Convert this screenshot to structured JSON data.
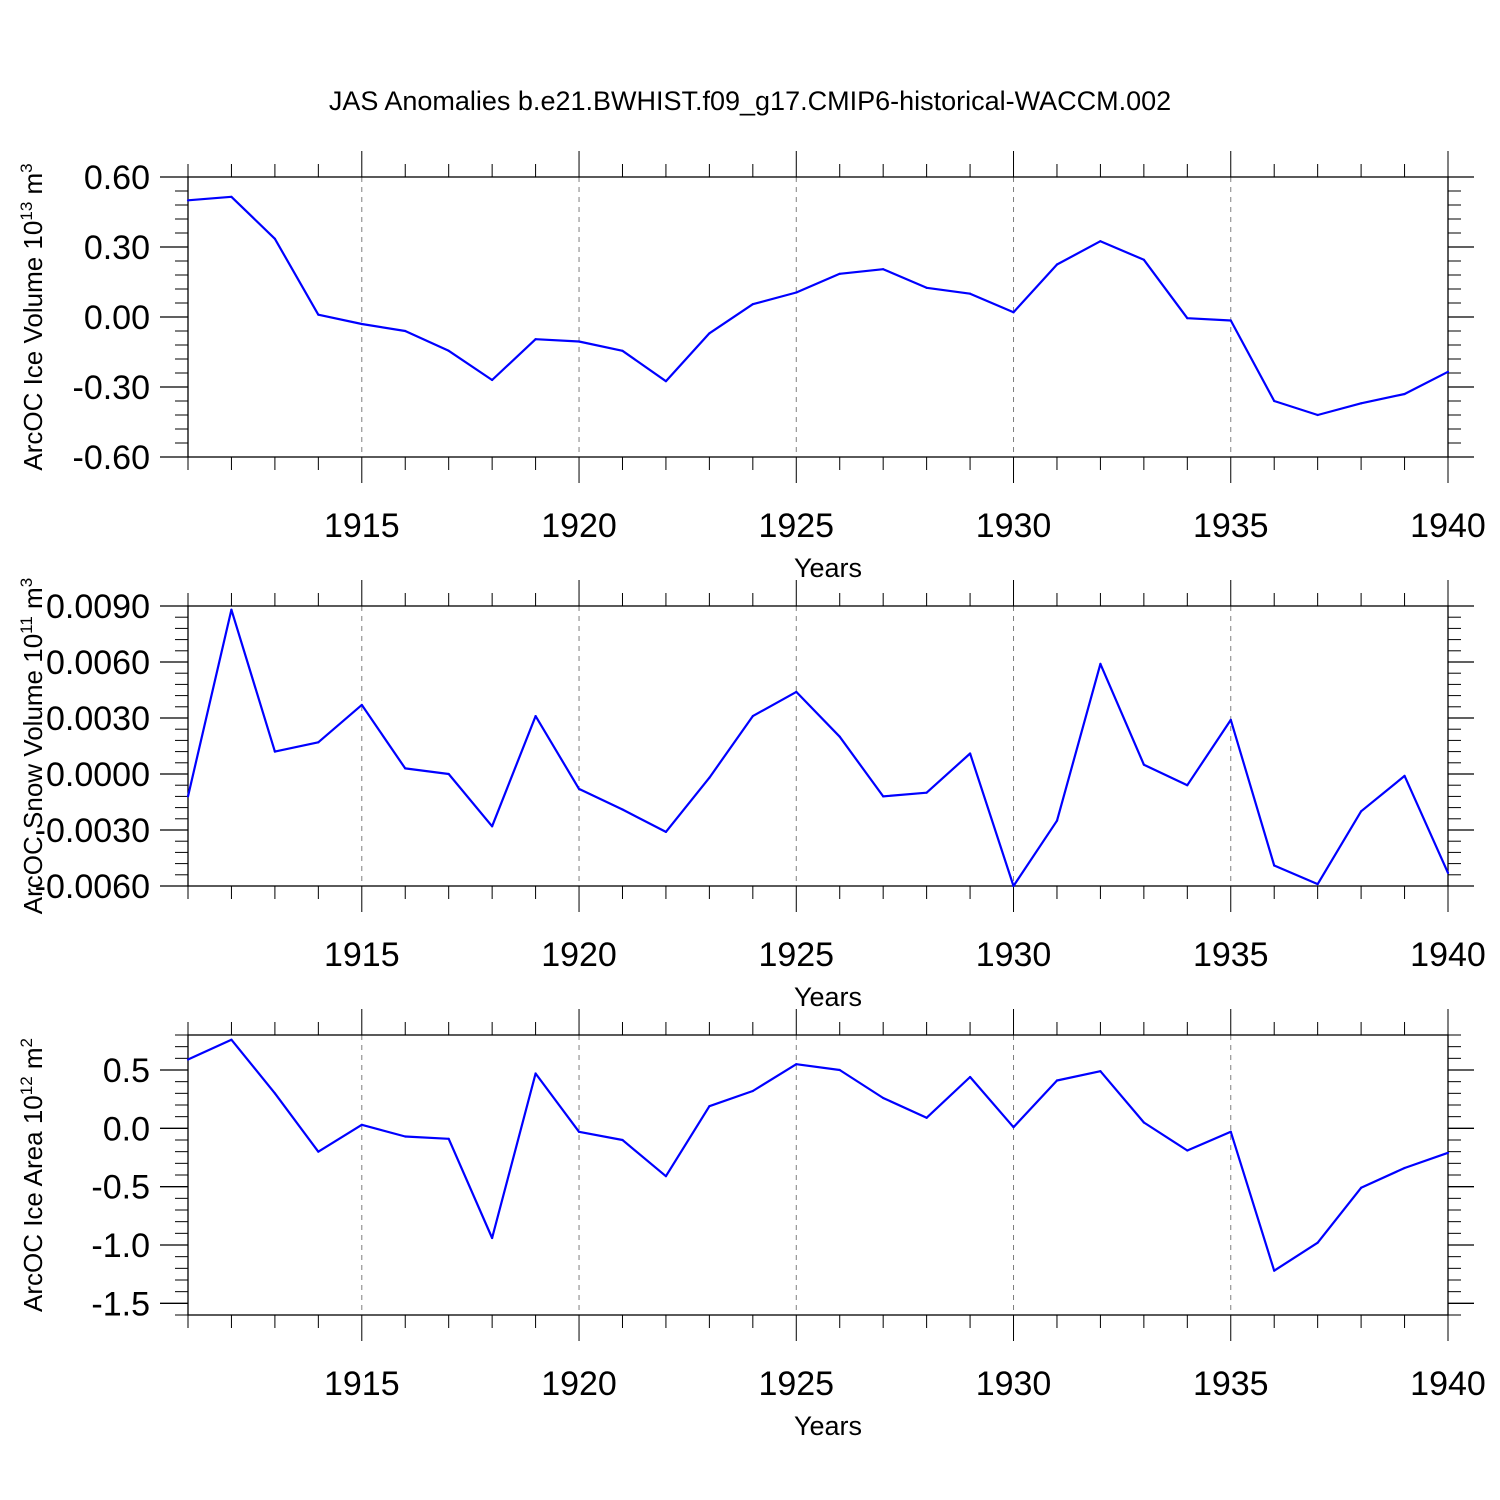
{
  "title": "JAS Anomalies b.e21.BWHIST.f09_g17.CMIP6-historical-WACCM.002",
  "colors": {
    "line": "#0000ff",
    "axes": "#000000",
    "grid": "#7f7f7f",
    "background": "#ffffff"
  },
  "chart_data": [
    {
      "type": "line",
      "ylabel": {
        "text": "ArcOC Ice Volume 10",
        "sup": "13",
        "unit": " m",
        "unit_sup": "3"
      },
      "xlabel": "Years",
      "xlim": [
        1911,
        1940
      ],
      "ylim": [
        -0.6,
        0.6
      ],
      "yticks": [
        -0.6,
        -0.3,
        0.0,
        0.3,
        0.6
      ],
      "ytick_labels": [
        "-0.60",
        "-0.30",
        "0.00",
        "0.30",
        "0.60"
      ],
      "xticks": [
        1915,
        1920,
        1925,
        1930,
        1935,
        1940
      ],
      "xtick_labels": [
        "1915",
        "1920",
        "1925",
        "1930",
        "1935",
        "1940"
      ],
      "grid": "vertical dashed at major x ticks",
      "x": [
        1911,
        1912,
        1913,
        1914,
        1915,
        1916,
        1917,
        1918,
        1919,
        1920,
        1921,
        1922,
        1923,
        1924,
        1925,
        1926,
        1927,
        1928,
        1929,
        1930,
        1931,
        1932,
        1933,
        1934,
        1935,
        1936,
        1937,
        1938,
        1939,
        1940
      ],
      "values": [
        0.5,
        0.515,
        0.335,
        0.01,
        -0.03,
        -0.06,
        -0.145,
        -0.27,
        -0.095,
        -0.105,
        -0.145,
        -0.275,
        -0.07,
        0.055,
        0.105,
        0.185,
        0.205,
        0.125,
        0.1,
        0.02,
        0.225,
        0.325,
        0.245,
        -0.005,
        -0.015,
        -0.36,
        -0.42,
        -0.37,
        -0.33,
        -0.235
      ]
    },
    {
      "type": "line",
      "ylabel": {
        "text": "ArcOC Snow Volume 10",
        "sup": "11",
        "unit": " m",
        "unit_sup": "3"
      },
      "xlabel": "Years",
      "xlim": [
        1911,
        1940
      ],
      "ylim": [
        -0.006,
        0.009
      ],
      "yticks": [
        -0.006,
        -0.003,
        0.0,
        0.003,
        0.006,
        0.009
      ],
      "ytick_labels": [
        "-0.0060",
        "-0.0030",
        "0.0000",
        "0.0030",
        "0.0060",
        "0.0090"
      ],
      "xticks": [
        1915,
        1920,
        1925,
        1930,
        1935,
        1940
      ],
      "xtick_labels": [
        "1915",
        "1920",
        "1925",
        "1930",
        "1935",
        "1940"
      ],
      "grid": "vertical dashed at major x ticks",
      "x": [
        1911,
        1912,
        1913,
        1914,
        1915,
        1916,
        1917,
        1918,
        1919,
        1920,
        1921,
        1922,
        1923,
        1924,
        1925,
        1926,
        1927,
        1928,
        1929,
        1930,
        1931,
        1932,
        1933,
        1934,
        1935,
        1936,
        1937,
        1938,
        1939,
        1940
      ],
      "values": [
        -0.0012,
        0.0088,
        0.0012,
        0.0017,
        0.0037,
        0.0003,
        0.0,
        -0.0028,
        0.0031,
        -0.0008,
        -0.0019,
        -0.0031,
        -0.0002,
        0.0031,
        0.0044,
        0.002,
        -0.0012,
        -0.001,
        0.0011,
        -0.006,
        -0.0025,
        0.0059,
        0.0005,
        -0.0006,
        0.0029,
        -0.0049,
        -0.0059,
        -0.002,
        -0.0001,
        -0.0053
      ]
    },
    {
      "type": "line",
      "ylabel": {
        "text": "ArcOC Ice Area 10",
        "sup": "12",
        "unit": " m",
        "unit_sup": "2"
      },
      "xlabel": "Years",
      "xlim": [
        1911,
        1940
      ],
      "ylim": [
        -1.6,
        0.8
      ],
      "yticks": [
        -1.5,
        -1.0,
        -0.5,
        0.0,
        0.5
      ],
      "ytick_labels": [
        "-1.5",
        "-1.0",
        "-0.5",
        "0.0",
        "0.5"
      ],
      "xticks": [
        1915,
        1920,
        1925,
        1930,
        1935,
        1940
      ],
      "xtick_labels": [
        "1915",
        "1920",
        "1925",
        "1930",
        "1935",
        "1940"
      ],
      "grid": "vertical dashed at major x ticks",
      "x": [
        1911,
        1912,
        1913,
        1914,
        1915,
        1916,
        1917,
        1918,
        1919,
        1920,
        1921,
        1922,
        1923,
        1924,
        1925,
        1926,
        1927,
        1928,
        1929,
        1930,
        1931,
        1932,
        1933,
        1934,
        1935,
        1936,
        1937,
        1938,
        1939,
        1940
      ],
      "values": [
        0.59,
        0.76,
        0.3,
        -0.2,
        0.03,
        -0.07,
        -0.09,
        -0.94,
        0.47,
        -0.03,
        -0.1,
        -0.41,
        0.19,
        0.32,
        0.55,
        0.5,
        0.26,
        0.09,
        0.44,
        0.01,
        0.41,
        0.49,
        0.05,
        -0.19,
        -0.03,
        -1.22,
        -0.98,
        -0.51,
        -0.34,
        -0.21
      ]
    }
  ]
}
